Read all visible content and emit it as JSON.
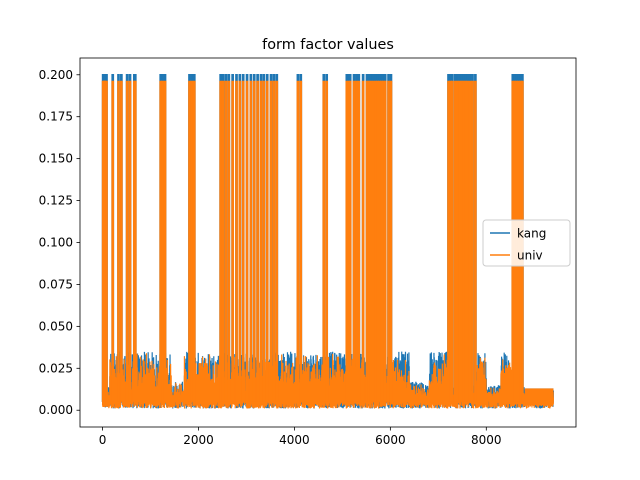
{
  "chart_data": {
    "type": "line",
    "title": "form factor values",
    "xlabel": "",
    "ylabel": "",
    "xlim": [
      -470,
      9870
    ],
    "ylim": [
      -0.01,
      0.21
    ],
    "x_ticks": [
      0,
      2000,
      4000,
      6000,
      8000
    ],
    "x_tick_labels": [
      "0",
      "2000",
      "4000",
      "6000",
      "8000"
    ],
    "y_ticks": [
      0.0,
      0.025,
      0.05,
      0.075,
      0.1,
      0.125,
      0.15,
      0.175,
      0.2
    ],
    "y_tick_labels": [
      "0.000",
      "0.025",
      "0.050",
      "0.075",
      "0.100",
      "0.125",
      "0.150",
      "0.175",
      "0.200"
    ],
    "grid": false,
    "legend_position": "center-right",
    "series": [
      {
        "name": "kang",
        "color": "#1f77b4",
        "x_range": [
          0,
          9400
        ],
        "baseline_envelope": [
          0.0,
          0.035
        ],
        "spikes_x": [
          0,
          20,
          40,
          70,
          200,
          320,
          380,
          500,
          560,
          650,
          670,
          1200,
          1240,
          1290,
          1800,
          1850,
          1900,
          2450,
          2500,
          2560,
          2620,
          2700,
          2780,
          2850,
          2920,
          3000,
          3080,
          3150,
          3220,
          3290,
          3350,
          3420,
          3500,
          3560,
          3620,
          4060,
          4120,
          4600,
          4660,
          5080,
          5120,
          5150,
          5230,
          5280,
          5330,
          5420,
          5500,
          5540,
          5580,
          5630,
          5680,
          5720,
          5760,
          5800,
          5840,
          5880,
          5950,
          6000,
          7200,
          7240,
          7280,
          7340,
          7390,
          7440,
          7480,
          7520,
          7560,
          7600,
          7650,
          7700,
          7760,
          8540,
          8580,
          8620,
          8660,
          8700,
          8740
        ],
        "spike_value": 0.2
      },
      {
        "name": "univ",
        "color": "#ff7f0e",
        "x_range": [
          0,
          9400
        ],
        "baseline_envelope": [
          0.0,
          0.04
        ],
        "spikes_x": [
          0,
          20,
          40,
          70,
          200,
          320,
          380,
          500,
          560,
          650,
          670,
          1200,
          1240,
          1290,
          1800,
          1850,
          1900,
          2450,
          2500,
          2560,
          2620,
          2700,
          2780,
          2850,
          2920,
          3000,
          3080,
          3150,
          3220,
          3290,
          3350,
          3420,
          3500,
          3560,
          3620,
          4060,
          4120,
          4600,
          4660,
          5080,
          5120,
          5150,
          5230,
          5280,
          5330,
          5420,
          5500,
          5540,
          5580,
          5630,
          5680,
          5720,
          5760,
          5800,
          5840,
          5880,
          5950,
          6000,
          7200,
          7240,
          7280,
          7340,
          7390,
          7440,
          7480,
          7520,
          7560,
          7600,
          7650,
          7700,
          7760,
          8540,
          8580,
          8620,
          8660,
          8700,
          8740
        ],
        "spike_value": 0.196
      }
    ],
    "plateau_segments": [
      {
        "x": [
          150,
          700
        ],
        "y": 0.035
      },
      {
        "x": [
          700,
          1430
        ],
        "y": 0.035
      },
      {
        "x": [
          1430,
          1700
        ],
        "y": 0.017
      },
      {
        "x": [
          1700,
          2150
        ],
        "y": 0.035
      },
      {
        "x": [
          2150,
          2450
        ],
        "y": 0.035
      },
      {
        "x": [
          2450,
          4000
        ],
        "y": 0.035
      },
      {
        "x": [
          4000,
          4600
        ],
        "y": 0.035
      },
      {
        "x": [
          4600,
          5100
        ],
        "y": 0.035
      },
      {
        "x": [
          5100,
          6400
        ],
        "y": 0.035
      },
      {
        "x": [
          6400,
          6800
        ],
        "y": 0.017
      },
      {
        "x": [
          6800,
          7200
        ],
        "y": 0.035
      },
      {
        "x": [
          7800,
          8000
        ],
        "y": 0.035
      },
      {
        "x": [
          8300,
          8540
        ],
        "y": 0.035
      },
      {
        "x": [
          8800,
          9400
        ],
        "y": 0.013
      }
    ]
  }
}
